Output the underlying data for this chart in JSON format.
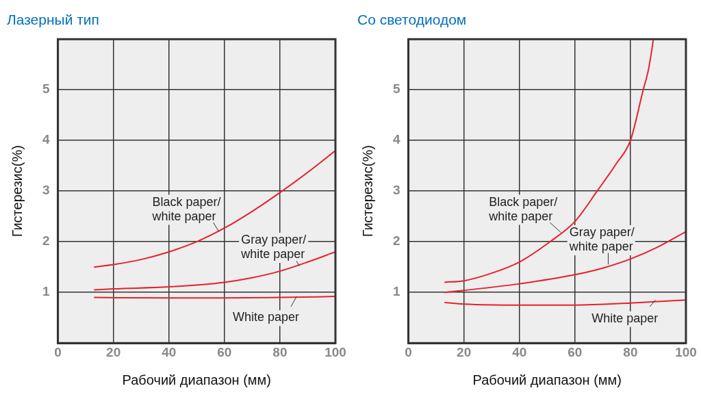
{
  "chart_data": [
    {
      "type": "line",
      "title": "Лазерный тип",
      "xlabel": "Рабочий диапазон (мм)",
      "ylabel": "Гистерезис(%)",
      "xlim": [
        0,
        100
      ],
      "ylim": [
        0,
        6
      ],
      "xticks": [
        0,
        20,
        40,
        60,
        80,
        100
      ],
      "yticks": [
        1,
        2,
        3,
        4,
        5
      ],
      "grid": true,
      "marker": "none",
      "line_style": "solid",
      "series": [
        {
          "name": "Black paper/\nwhite paper",
          "color": "#e8202a",
          "x": [
            13,
            20,
            30,
            40,
            50,
            60,
            70,
            80,
            90,
            100
          ],
          "values": [
            1.5,
            1.55,
            1.65,
            1.8,
            2.0,
            2.27,
            2.6,
            2.97,
            3.37,
            3.8
          ]
        },
        {
          "name": "Gray paper/\nwhite paper",
          "color": "#e8202a",
          "x": [
            13,
            20,
            40,
            60,
            70,
            80,
            90,
            100
          ],
          "values": [
            1.05,
            1.07,
            1.11,
            1.2,
            1.29,
            1.42,
            1.6,
            1.8
          ]
        },
        {
          "name": "White paper",
          "color": "#e8202a",
          "x": [
            13,
            40,
            60,
            80,
            100
          ],
          "values": [
            0.9,
            0.89,
            0.89,
            0.9,
            0.92
          ]
        }
      ]
    },
    {
      "type": "line",
      "title": "Со светодиодом",
      "xlabel": "Рабочий диапазон (мм)",
      "ylabel": "Гистерезис(%)",
      "xlim": [
        0,
        100
      ],
      "ylim": [
        0,
        6
      ],
      "xticks": [
        0,
        20,
        40,
        60,
        80,
        100
      ],
      "yticks": [
        1,
        2,
        3,
        4,
        5
      ],
      "grid": true,
      "marker": "none",
      "line_style": "solid",
      "series": [
        {
          "name": "Black paper/\nwhite paper",
          "color": "#e8202a",
          "x": [
            13,
            20,
            30,
            40,
            51,
            60,
            68,
            75,
            80,
            84.6,
            86.5,
            88.3
          ],
          "values": [
            1.2,
            1.23,
            1.38,
            1.6,
            2.0,
            2.4,
            3.0,
            3.55,
            4.0,
            5.0,
            5.4,
            6.0
          ]
        },
        {
          "name": "Gray paper/\nwhite paper",
          "color": "#e8202a",
          "x": [
            13,
            20,
            40,
            60,
            70,
            80,
            90,
            100
          ],
          "values": [
            1.0,
            1.04,
            1.17,
            1.35,
            1.48,
            1.66,
            1.9,
            2.2
          ]
        },
        {
          "name": "White paper",
          "color": "#e8202a",
          "x": [
            13,
            20,
            40,
            60,
            80,
            100
          ],
          "values": [
            0.8,
            0.77,
            0.75,
            0.75,
            0.79,
            0.85
          ]
        }
      ]
    }
  ]
}
